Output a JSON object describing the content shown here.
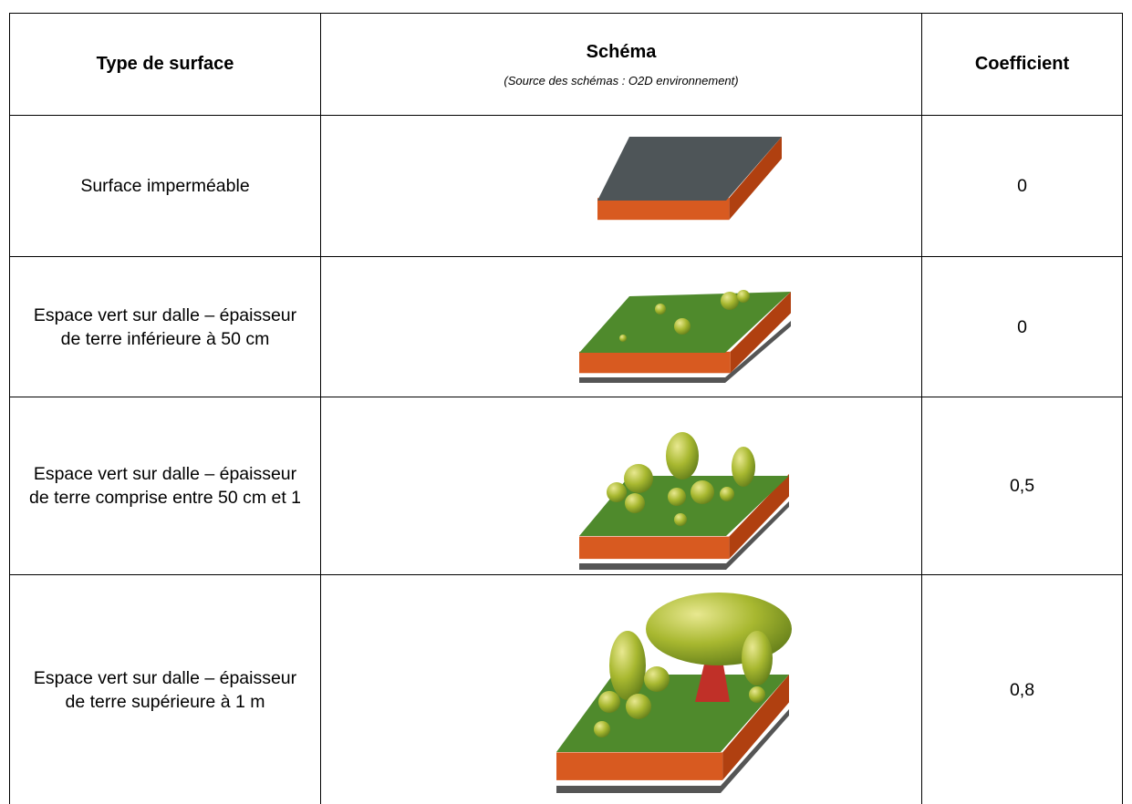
{
  "table": {
    "header": {
      "type": "Type de surface",
      "schema": "Schéma",
      "source": "(Source des schémas : O2D environnement)",
      "coefficient": "Coefficient"
    },
    "rows": [
      [
        "Surface imperméable",
        "0"
      ],
      [
        "Espace vert sur dalle – épaisseur de terre inférieure à 50 cm",
        "0"
      ],
      [
        "Espace vert sur dalle – épaisseur de terre comprise entre 50 cm et 1",
        "0,5"
      ],
      [
        "Espace vert sur dalle – épaisseur de terre supérieure à 1 m",
        "0,8"
      ]
    ]
  }
}
